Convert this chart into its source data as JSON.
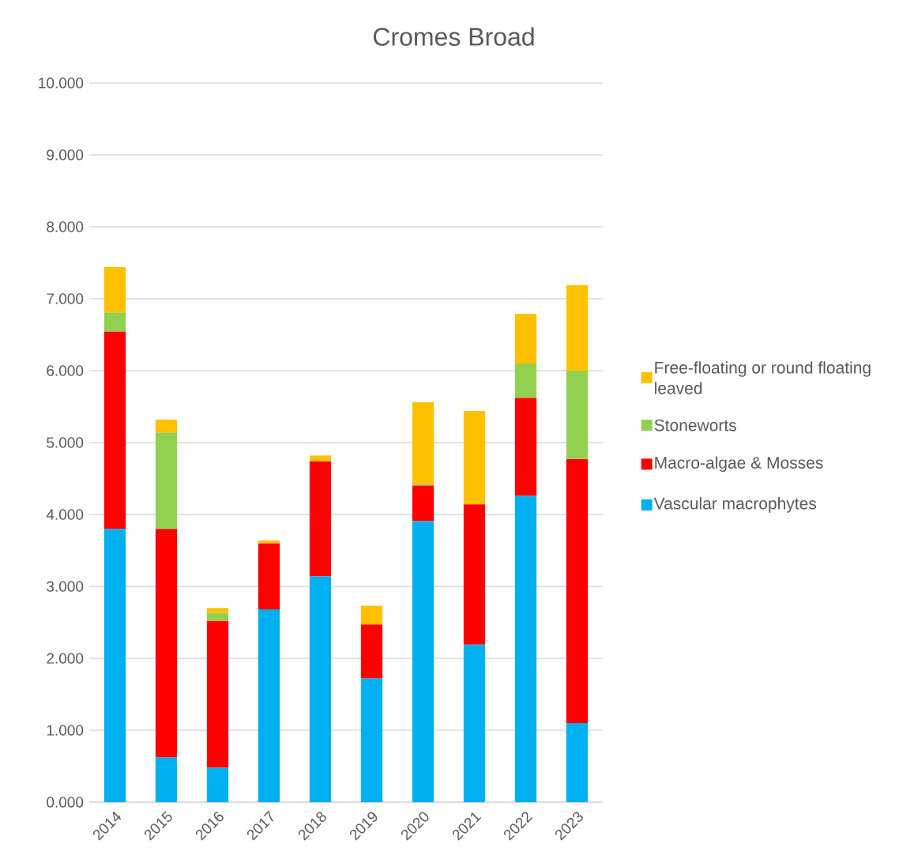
{
  "chart_data": {
    "type": "bar",
    "title": "Cromes Broad",
    "stacked": true,
    "categories": [
      "2014",
      "2015",
      "2016",
      "2017",
      "2018",
      "2019",
      "2020",
      "2021",
      "2022",
      "2023"
    ],
    "series": [
      {
        "name": "Vascular macrophytes",
        "color": "#00b0f0",
        "values": [
          3.8,
          0.62,
          0.48,
          2.68,
          3.14,
          1.72,
          3.91,
          2.19,
          4.26,
          1.1
        ]
      },
      {
        "name": "Macro-algae & Mosses",
        "color": "#ff0000",
        "values": [
          2.74,
          3.18,
          2.04,
          0.92,
          1.6,
          0.75,
          0.49,
          1.95,
          1.36,
          3.67
        ]
      },
      {
        "name": "Stoneworts",
        "color": "#92d050",
        "values": [
          0.27,
          1.34,
          0.11,
          0,
          0,
          0,
          0.02,
          0,
          0.48,
          1.23
        ]
      },
      {
        "name": "Free-floating or round floating leaved",
        "color": "#ffc000",
        "values": [
          0.63,
          0.18,
          0.07,
          0.04,
          0.08,
          0.26,
          1.14,
          1.3,
          0.69,
          1.19
        ]
      }
    ],
    "ylim": [
      0,
      10
    ],
    "yticks": [
      {
        "value": 0,
        "label": "0.000"
      },
      {
        "value": 1,
        "label": "1.000"
      },
      {
        "value": 2,
        "label": "2.000"
      },
      {
        "value": 3,
        "label": "3.000"
      },
      {
        "value": 4,
        "label": "4.000"
      },
      {
        "value": 5,
        "label": "5.000"
      },
      {
        "value": 6,
        "label": "6.000"
      },
      {
        "value": 7,
        "label": "7.000"
      },
      {
        "value": 8,
        "label": "8.000"
      },
      {
        "value": 9,
        "label": "9.000"
      },
      {
        "value": 10,
        "label": "10.000"
      }
    ],
    "grid": "y",
    "legend": "right"
  }
}
